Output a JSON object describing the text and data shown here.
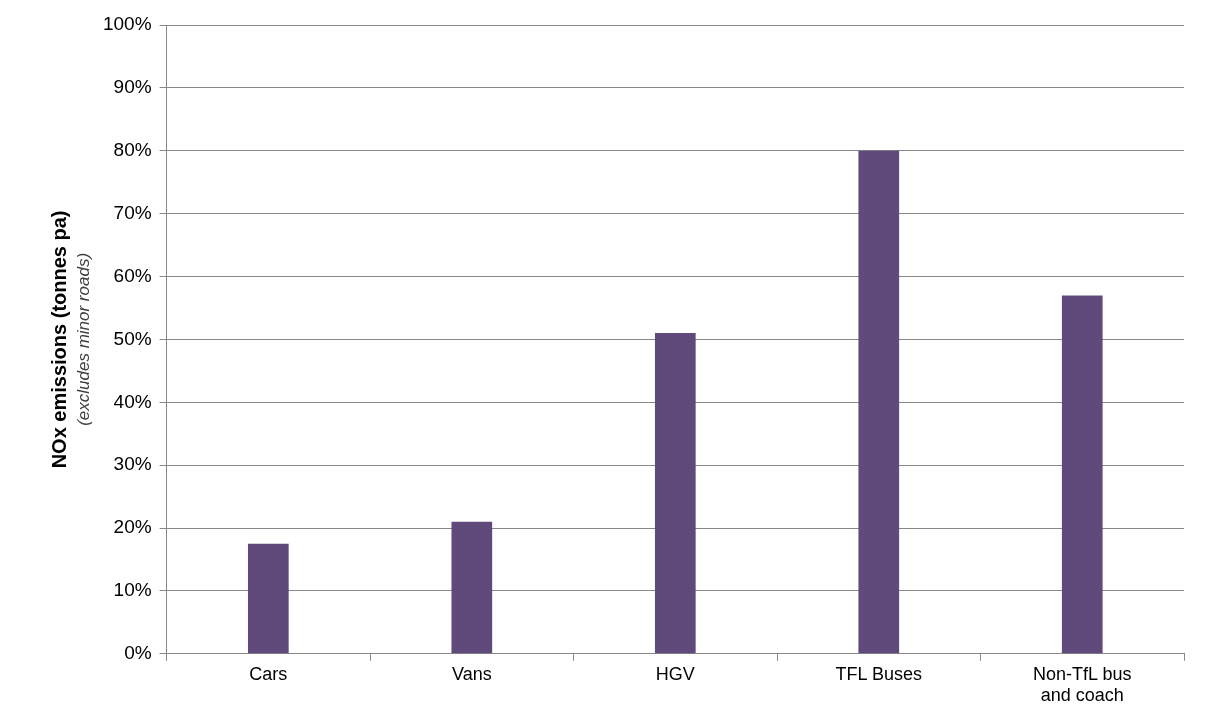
{
  "chart_data": {
    "type": "bar",
    "ylabel": "NOx emissions (tonnes pa)",
    "annotations": [
      "(excludes minor roads)"
    ],
    "categories": [
      "Cars",
      "Vans",
      "HGV",
      "TFL Buses",
      "Non-TfL bus and coach"
    ],
    "values": [
      17.5,
      21,
      51,
      80,
      57
    ],
    "color": "#604a7b",
    "ylim": [
      0,
      100
    ],
    "yticks": [
      {
        "value": 0,
        "label": "0%"
      },
      {
        "value": 10,
        "label": "10%"
      },
      {
        "value": 20,
        "label": "20%"
      },
      {
        "value": 30,
        "label": "30%"
      },
      {
        "value": 40,
        "label": "40%"
      },
      {
        "value": 50,
        "label": "50%"
      },
      {
        "value": 60,
        "label": "60%"
      },
      {
        "value": 70,
        "label": "70%"
      },
      {
        "value": 80,
        "label": "80%"
      },
      {
        "value": 90,
        "label": "90%"
      },
      {
        "value": 100,
        "label": "100%"
      }
    ],
    "grid": "y",
    "legend": false
  }
}
